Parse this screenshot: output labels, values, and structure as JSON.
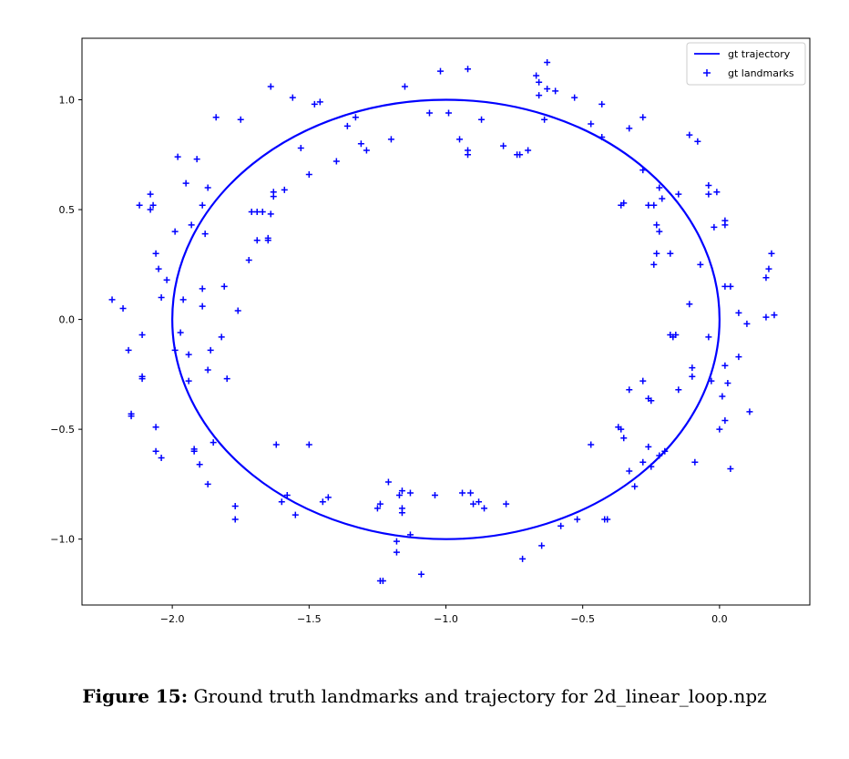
{
  "caption": {
    "label": "Figure 15:",
    "text": "Ground truth landmarks and trajectory for 2d_linear_loop.npz"
  },
  "chart_data": {
    "type": "scatter",
    "title": "",
    "xlabel": "",
    "ylabel": "",
    "xlim": [
      -2.33,
      0.33
    ],
    "ylim": [
      -1.3,
      1.28
    ],
    "xticks": [
      -2.0,
      -1.5,
      -1.0,
      -0.5,
      0.0
    ],
    "xtick_labels": [
      "−2.0",
      "−1.5",
      "−1.0",
      "−0.5",
      "0.0"
    ],
    "yticks": [
      -1.0,
      -0.5,
      0.0,
      0.5,
      1.0
    ],
    "ytick_labels": [
      "−1.0",
      "−0.5",
      "0.0",
      "0.5",
      "1.0"
    ],
    "grid": false,
    "legend_position": "top-right",
    "color": "#0000ff",
    "series": [
      {
        "name": "gt trajectory",
        "kind": "line",
        "shape": "circle",
        "center": [
          -1.0,
          0.0
        ],
        "radius": 1.0
      },
      {
        "name": "gt landmarks",
        "kind": "scatter",
        "marker": "plus",
        "points": [
          [
            -2.22,
            0.09
          ],
          [
            -2.18,
            0.05
          ],
          [
            -2.16,
            -0.14
          ],
          [
            -2.15,
            -0.43
          ],
          [
            -2.15,
            -0.44
          ],
          [
            -2.12,
            0.52
          ],
          [
            -2.11,
            -0.07
          ],
          [
            -2.11,
            -0.26
          ],
          [
            -2.11,
            -0.27
          ],
          [
            -2.08,
            0.57
          ],
          [
            -2.08,
            0.5
          ],
          [
            -2.07,
            0.52
          ],
          [
            -2.06,
            0.3
          ],
          [
            -2.06,
            -0.49
          ],
          [
            -2.06,
            -0.6
          ],
          [
            -2.05,
            0.23
          ],
          [
            -2.04,
            0.1
          ],
          [
            -2.04,
            -0.63
          ],
          [
            -2.02,
            0.18
          ],
          [
            -1.99,
            0.4
          ],
          [
            -1.99,
            -0.14
          ],
          [
            -1.98,
            0.74
          ],
          [
            -1.97,
            -0.06
          ],
          [
            -1.96,
            0.09
          ],
          [
            -1.95,
            0.62
          ],
          [
            -1.94,
            -0.28
          ],
          [
            -1.94,
            -0.16
          ],
          [
            -1.93,
            0.43
          ],
          [
            -1.92,
            -0.59
          ],
          [
            -1.92,
            -0.6
          ],
          [
            -1.91,
            0.73
          ],
          [
            -1.89,
            0.52
          ],
          [
            -1.89,
            0.14
          ],
          [
            -1.89,
            0.06
          ],
          [
            -1.9,
            -0.66
          ],
          [
            -1.88,
            0.39
          ],
          [
            -1.87,
            0.6
          ],
          [
            -1.87,
            -0.23
          ],
          [
            -1.87,
            -0.75
          ],
          [
            -1.86,
            -0.14
          ],
          [
            -1.85,
            -0.56
          ],
          [
            -1.84,
            0.92
          ],
          [
            -1.82,
            -0.08
          ],
          [
            -1.81,
            0.15
          ],
          [
            -1.8,
            -0.27
          ],
          [
            -1.77,
            -0.85
          ],
          [
            -1.77,
            -0.91
          ],
          [
            -1.76,
            0.04
          ],
          [
            -1.75,
            0.91
          ],
          [
            -1.72,
            0.27
          ],
          [
            -1.71,
            0.49
          ],
          [
            -1.69,
            0.49
          ],
          [
            -1.69,
            0.36
          ],
          [
            -1.67,
            0.49
          ],
          [
            -1.65,
            0.37
          ],
          [
            -1.65,
            0.36
          ],
          [
            -1.64,
            1.06
          ],
          [
            -1.64,
            0.48
          ],
          [
            -1.63,
            0.56
          ],
          [
            -1.63,
            0.58
          ],
          [
            -1.62,
            -0.57
          ],
          [
            -1.6,
            -0.83
          ],
          [
            -1.59,
            0.59
          ],
          [
            -1.58,
            -0.8
          ],
          [
            -1.56,
            1.01
          ],
          [
            -1.55,
            -0.89
          ],
          [
            -1.53,
            0.78
          ],
          [
            -1.5,
            0.66
          ],
          [
            -1.5,
            -0.57
          ],
          [
            -1.48,
            0.98
          ],
          [
            -1.46,
            0.99
          ],
          [
            -1.45,
            -0.83
          ],
          [
            -1.43,
            -0.81
          ],
          [
            -1.4,
            0.72
          ],
          [
            -1.36,
            0.88
          ],
          [
            -1.33,
            0.92
          ],
          [
            -1.31,
            0.8
          ],
          [
            -1.29,
            0.77
          ],
          [
            -1.25,
            -0.86
          ],
          [
            -1.24,
            -0.84
          ],
          [
            -1.24,
            -1.19
          ],
          [
            -1.23,
            -1.19
          ],
          [
            -1.2,
            0.82
          ],
          [
            -1.21,
            -0.74
          ],
          [
            -1.18,
            -1.01
          ],
          [
            -1.18,
            -1.06
          ],
          [
            -1.17,
            -0.8
          ],
          [
            -1.16,
            -0.88
          ],
          [
            -1.16,
            -0.86
          ],
          [
            -1.16,
            -0.78
          ],
          [
            -1.15,
            1.06
          ],
          [
            -1.13,
            -0.79
          ],
          [
            -1.13,
            -0.98
          ],
          [
            -1.09,
            -1.16
          ],
          [
            -1.06,
            0.94
          ],
          [
            -1.04,
            -0.8
          ],
          [
            -1.02,
            1.13
          ],
          [
            -0.99,
            0.94
          ],
          [
            -0.95,
            0.82
          ],
          [
            -0.94,
            -0.79
          ],
          [
            -0.92,
            1.14
          ],
          [
            -0.92,
            0.77
          ],
          [
            -0.92,
            0.75
          ],
          [
            -0.91,
            -0.79
          ],
          [
            -0.9,
            -0.84
          ],
          [
            -0.88,
            -0.83
          ],
          [
            -0.87,
            0.91
          ],
          [
            -0.86,
            -0.86
          ],
          [
            -0.79,
            0.79
          ],
          [
            -0.78,
            -0.84
          ],
          [
            -0.74,
            0.75
          ],
          [
            -0.73,
            0.75
          ],
          [
            -0.72,
            -1.09
          ],
          [
            -0.7,
            0.77
          ],
          [
            -0.67,
            1.11
          ],
          [
            -0.66,
            1.02
          ],
          [
            -0.66,
            1.08
          ],
          [
            -0.65,
            -1.03
          ],
          [
            -0.64,
            0.91
          ],
          [
            -0.63,
            1.17
          ],
          [
            -0.63,
            1.05
          ],
          [
            -0.6,
            1.04
          ],
          [
            -0.58,
            -0.94
          ],
          [
            -0.53,
            1.01
          ],
          [
            -0.52,
            -0.91
          ],
          [
            -0.47,
            0.89
          ],
          [
            -0.47,
            -0.57
          ],
          [
            -0.43,
            0.98
          ],
          [
            -0.43,
            0.83
          ],
          [
            -0.42,
            -0.91
          ],
          [
            -0.41,
            -0.91
          ],
          [
            -0.36,
            0.52
          ],
          [
            -0.35,
            0.53
          ],
          [
            -0.37,
            -0.49
          ],
          [
            -0.36,
            -0.5
          ],
          [
            -0.35,
            -0.54
          ],
          [
            -0.33,
            0.87
          ],
          [
            -0.33,
            -0.32
          ],
          [
            -0.33,
            -0.69
          ],
          [
            -0.31,
            -0.76
          ],
          [
            -0.28,
            0.92
          ],
          [
            -0.28,
            0.68
          ],
          [
            -0.28,
            -0.28
          ],
          [
            -0.28,
            -0.65
          ],
          [
            -0.26,
            0.52
          ],
          [
            -0.26,
            -0.36
          ],
          [
            -0.26,
            -0.58
          ],
          [
            -0.25,
            -0.37
          ],
          [
            -0.25,
            -0.67
          ],
          [
            -0.24,
            0.25
          ],
          [
            -0.24,
            0.52
          ],
          [
            -0.23,
            0.43
          ],
          [
            -0.23,
            0.3
          ],
          [
            -0.22,
            0.4
          ],
          [
            -0.22,
            0.6
          ],
          [
            -0.22,
            -0.62
          ],
          [
            -0.21,
            0.55
          ],
          [
            -0.2,
            -0.6
          ],
          [
            -0.18,
            0.3
          ],
          [
            -0.18,
            -0.07
          ],
          [
            -0.17,
            -0.08
          ],
          [
            -0.16,
            -0.07
          ],
          [
            -0.15,
            0.57
          ],
          [
            -0.15,
            -0.32
          ],
          [
            -0.11,
            0.84
          ],
          [
            -0.11,
            0.07
          ],
          [
            -0.1,
            -0.22
          ],
          [
            -0.1,
            -0.26
          ],
          [
            -0.08,
            0.81
          ],
          [
            -0.09,
            -0.65
          ],
          [
            -0.07,
            0.25
          ],
          [
            -0.04,
            0.57
          ],
          [
            -0.04,
            0.61
          ],
          [
            -0.04,
            -0.08
          ],
          [
            -0.03,
            -0.28
          ],
          [
            -0.02,
            0.42
          ],
          [
            -0.01,
            0.58
          ],
          [
            0.0,
            -0.5
          ],
          [
            0.01,
            -0.35
          ],
          [
            0.02,
            0.43
          ],
          [
            0.02,
            0.45
          ],
          [
            0.02,
            0.15
          ],
          [
            0.02,
            -0.21
          ],
          [
            0.02,
            -0.46
          ],
          [
            0.03,
            -0.29
          ],
          [
            0.04,
            0.15
          ],
          [
            0.04,
            -0.68
          ],
          [
            0.07,
            0.03
          ],
          [
            0.07,
            -0.17
          ],
          [
            0.1,
            -0.02
          ],
          [
            0.11,
            -0.42
          ],
          [
            0.17,
            0.19
          ],
          [
            0.17,
            0.01
          ],
          [
            0.18,
            0.23
          ],
          [
            0.19,
            0.3
          ],
          [
            0.2,
            0.02
          ]
        ]
      }
    ]
  }
}
